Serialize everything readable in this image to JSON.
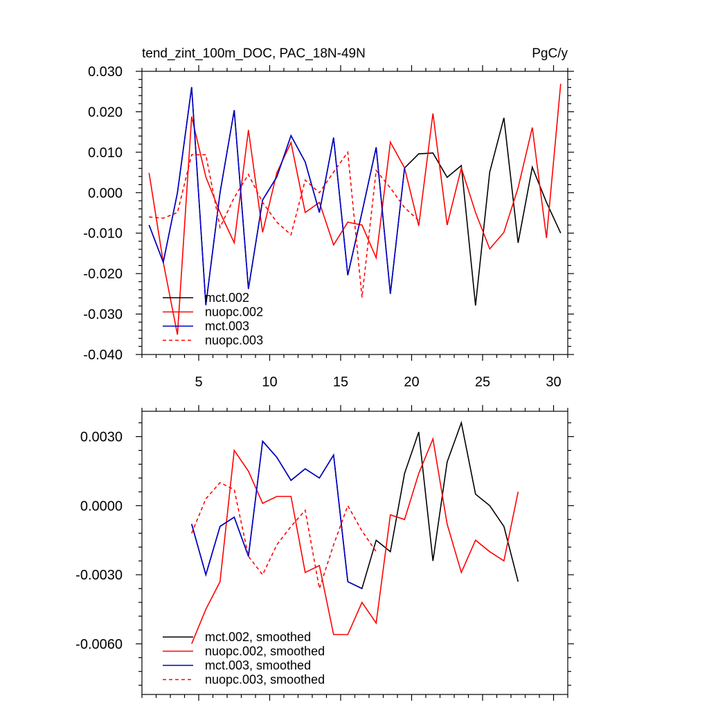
{
  "chart_data": [
    {
      "type": "line",
      "title": "tend_zint_100m_DOC, PAC_18N-49N",
      "units": "PgC/y",
      "xlim": [
        1,
        31
      ],
      "ylim": [
        -0.04,
        0.03
      ],
      "xticks": [
        5,
        10,
        15,
        20,
        25,
        30
      ],
      "xtick_labels": [
        "5",
        "10",
        "15",
        "20",
        "25",
        "30"
      ],
      "yticks": [
        -0.04,
        -0.03,
        -0.02,
        -0.01,
        0.0,
        0.01,
        0.02,
        0.03
      ],
      "ytick_labels": [
        "-0.040",
        "-0.030",
        "-0.020",
        "-0.010",
        "0.000",
        "0.010",
        "0.020",
        "0.030"
      ],
      "series": [
        {
          "name": "mct.002",
          "color": "#000000",
          "dash": "solid",
          "x": [
            1.5,
            2.5,
            3.5,
            4.5,
            5.5,
            6.5,
            7.5,
            8.5,
            9.5,
            10.5,
            11.5,
            12.5,
            13.5,
            14.5,
            15.5,
            16.5,
            17.5,
            18.5,
            19.5,
            20.5,
            21.5,
            22.5,
            23.5,
            24.5,
            25.5,
            26.5,
            27.5,
            28.5,
            29.5,
            30.5
          ],
          "values": [
            -0.008,
            -0.0172,
            0.0,
            0.0261,
            -0.0278,
            0.0,
            0.0204,
            -0.0238,
            -0.0018,
            0.0039,
            0.0141,
            0.0076,
            -0.0049,
            0.0136,
            -0.0204,
            -0.0049,
            0.0112,
            -0.025,
            0.0061,
            0.0096,
            0.0098,
            0.0038,
            0.0067,
            -0.0279,
            0.0051,
            0.0185,
            -0.0124,
            0.0063,
            -0.0024,
            -0.01
          ]
        },
        {
          "name": "nuopc.002",
          "color": "#ff0000",
          "dash": "solid",
          "x": [
            1.5,
            2.5,
            3.5,
            4.5,
            5.5,
            6.5,
            7.5,
            8.5,
            9.5,
            10.5,
            11.5,
            12.5,
            13.5,
            14.5,
            15.5,
            16.5,
            17.5,
            18.5,
            19.5,
            20.5,
            21.5,
            22.5,
            23.5,
            24.5,
            25.5,
            26.5,
            27.5,
            28.5,
            29.5,
            30.5
          ],
          "values": [
            0.0049,
            -0.0172,
            -0.0351,
            0.0188,
            0.0039,
            -0.0049,
            -0.0124,
            0.0155,
            -0.0098,
            0.0049,
            0.0124,
            -0.0049,
            -0.0024,
            -0.0129,
            -0.0073,
            -0.008,
            -0.0161,
            0.0125,
            0.0061,
            -0.0082,
            0.0196,
            -0.008,
            0.0061,
            -0.0049,
            -0.0139,
            -0.0098,
            0.0012,
            0.0161,
            -0.0112,
            0.0269
          ]
        },
        {
          "name": "mct.003",
          "color": "#0000cc",
          "dash": "solid",
          "x": [
            1.5,
            2.5,
            3.5,
            4.5,
            5.5,
            6.5,
            7.5,
            8.5,
            9.5,
            10.5,
            11.5,
            12.5,
            13.5,
            14.5,
            15.5,
            16.5,
            17.5,
            18.5,
            19.5
          ],
          "values": [
            -0.008,
            -0.0172,
            0.0,
            0.0261,
            -0.0278,
            0.0,
            0.0204,
            -0.0238,
            -0.0018,
            0.0039,
            0.0141,
            0.0076,
            -0.0049,
            0.0136,
            -0.0204,
            -0.0049,
            0.0112,
            -0.025,
            0.0061
          ]
        },
        {
          "name": "nuopc.003",
          "color": "#ff0000",
          "dash": "dashed",
          "x": [
            1.5,
            2.5,
            3.5,
            4.5,
            5.5,
            6.5,
            7.5,
            8.5,
            9.5,
            10.5,
            11.5,
            12.5,
            13.5,
            14.5,
            15.5,
            16.5,
            17.5,
            18.5,
            19.5,
            20.5
          ],
          "values": [
            -0.006,
            -0.0063,
            -0.0049,
            0.0094,
            0.0094,
            -0.0086,
            -0.0012,
            0.0045,
            -0.0024,
            -0.0073,
            -0.0104,
            0.0031,
            0.0,
            0.0051,
            0.01,
            -0.0259,
            0.0055,
            0.0012,
            -0.0037,
            -0.0069
          ]
        }
      ]
    },
    {
      "type": "line",
      "title": "",
      "xlim": [
        1,
        31
      ],
      "ylim": [
        -0.0082,
        0.0041
      ],
      "yticks": [
        -0.006,
        -0.003,
        0.0,
        0.003
      ],
      "ytick_labels": [
        "-0.0060",
        "-0.0030",
        "0.0000",
        "0.0030"
      ],
      "series": [
        {
          "name": "mct.002, smoothed",
          "color": "#000000",
          "dash": "solid",
          "x": [
            4.5,
            5.5,
            6.5,
            7.5,
            8.5,
            9.5,
            10.5,
            11.5,
            12.5,
            13.5,
            14.5,
            15.5,
            16.5,
            17.5,
            18.5,
            19.5,
            20.5,
            21.5,
            22.5,
            23.5,
            24.5,
            25.5,
            26.5,
            27.5
          ],
          "values": [
            -0.0008,
            -0.003,
            -0.0009,
            -0.0005,
            -0.0022,
            0.0028,
            0.0021,
            0.0011,
            0.0016,
            0.0012,
            0.0022,
            -0.0033,
            -0.0036,
            -0.0015,
            -0.002,
            0.0014,
            0.0032,
            -0.0024,
            0.0019,
            0.0036,
            0.0005,
            0.0,
            -0.0009,
            -0.0033
          ]
        },
        {
          "name": "nuopc.002, smoothed",
          "color": "#ff0000",
          "dash": "solid",
          "x": [
            4.5,
            5.5,
            6.5,
            7.5,
            8.5,
            9.5,
            10.5,
            11.5,
            12.5,
            13.5,
            14.5,
            15.5,
            16.5,
            17.5,
            18.5,
            19.5,
            20.5,
            21.5,
            22.5,
            23.5,
            24.5,
            25.5,
            26.5,
            27.5
          ],
          "values": [
            -0.006,
            -0.0045,
            -0.0033,
            0.0024,
            0.0015,
            0.0001,
            0.0004,
            0.0004,
            -0.0029,
            -0.0026,
            -0.0056,
            -0.0056,
            -0.0042,
            -0.0051,
            -0.0004,
            -0.0006,
            0.0014,
            0.0029,
            -0.0008,
            -0.0029,
            -0.0015,
            -0.002,
            -0.0024,
            0.0006
          ]
        },
        {
          "name": "mct.003, smoothed",
          "color": "#0000cc",
          "dash": "solid",
          "x": [
            4.5,
            5.5,
            6.5,
            7.5,
            8.5,
            9.5,
            10.5,
            11.5,
            12.5,
            13.5,
            14.5,
            15.5,
            16.5
          ],
          "values": [
            -0.0008,
            -0.003,
            -0.0009,
            -0.0005,
            -0.0022,
            0.0028,
            0.0021,
            0.0011,
            0.0016,
            0.0012,
            0.0022,
            -0.0033,
            -0.0036
          ]
        },
        {
          "name": "nuopc.003, smoothed",
          "color": "#ff0000",
          "dash": "dashed",
          "x": [
            4.5,
            5.5,
            6.5,
            7.5,
            8.5,
            9.5,
            10.5,
            11.5,
            12.5,
            13.5,
            14.5,
            15.5,
            16.5,
            17.5
          ],
          "values": [
            -0.0012,
            0.0003,
            0.001,
            0.0007,
            -0.0022,
            -0.003,
            -0.0017,
            -0.0009,
            -0.0002,
            -0.0036,
            -0.0017,
            0.0,
            -0.0011,
            -0.002
          ]
        }
      ]
    }
  ]
}
